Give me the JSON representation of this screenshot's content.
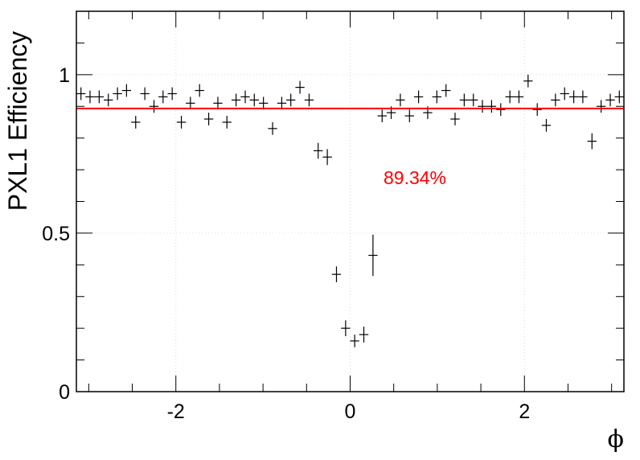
{
  "chart_data": {
    "type": "scatter",
    "title": "",
    "xlabel": "ϕ",
    "ylabel": "PXL1 Efficiency",
    "xlim": [
      -3.1416,
      3.1416
    ],
    "ylim": [
      0,
      1.2
    ],
    "x_ticks": [
      -2,
      0,
      2
    ],
    "x_tick_labels": [
      "-2",
      "0",
      "2"
    ],
    "y_ticks": [
      0,
      0.5,
      1
    ],
    "y_tick_labels": [
      "0",
      "0.5",
      "1"
    ],
    "grid": true,
    "legend": "none",
    "fit_line": {
      "value": 0.8934,
      "color": "#ff0000"
    },
    "annotation": {
      "text": "89.34%",
      "color": "#ff0000"
    },
    "marker_color": "#000000",
    "series": [
      {
        "x_bin_width": 0.1047,
        "x": [
          -3.089,
          -2.985,
          -2.88,
          -2.775,
          -2.67,
          -2.566,
          -2.461,
          -2.356,
          -2.251,
          -2.147,
          -2.042,
          -1.937,
          -1.833,
          -1.728,
          -1.623,
          -1.518,
          -1.414,
          -1.309,
          -1.204,
          -1.1,
          -0.995,
          -0.89,
          -0.785,
          -0.681,
          -0.576,
          -0.471,
          -0.367,
          -0.262,
          -0.157,
          -0.052,
          0.052,
          0.157,
          0.262,
          0.367,
          0.471,
          0.576,
          0.681,
          0.785,
          0.89,
          0.995,
          1.1,
          1.204,
          1.309,
          1.414,
          1.518,
          1.623,
          1.728,
          1.833,
          1.937,
          2.042,
          2.147,
          2.251,
          2.356,
          2.461,
          2.566,
          2.67,
          2.775,
          2.88,
          2.985,
          3.089
        ],
        "y": [
          0.94,
          0.93,
          0.93,
          0.92,
          0.94,
          0.95,
          0.85,
          0.94,
          0.9,
          0.93,
          0.94,
          0.85,
          0.91,
          0.95,
          0.86,
          0.91,
          0.85,
          0.92,
          0.93,
          0.92,
          0.91,
          0.83,
          0.91,
          0.92,
          0.96,
          0.92,
          0.76,
          0.74,
          0.37,
          0.2,
          0.16,
          0.18,
          0.43,
          0.87,
          0.88,
          0.92,
          0.87,
          0.93,
          0.88,
          0.93,
          0.95,
          0.86,
          0.92,
          0.92,
          0.9,
          0.9,
          0.89,
          0.93,
          0.93,
          0.98,
          0.89,
          0.84,
          0.92,
          0.94,
          0.93,
          0.93,
          0.79,
          0.9,
          0.92,
          0.93
        ],
        "y_err": [
          0.012,
          0.012,
          0.012,
          0.012,
          0.012,
          0.012,
          0.015,
          0.012,
          0.015,
          0.012,
          0.012,
          0.015,
          0.015,
          0.012,
          0.018,
          0.015,
          0.015,
          0.012,
          0.012,
          0.012,
          0.012,
          0.018,
          0.015,
          0.012,
          0.012,
          0.012,
          0.025,
          0.025,
          0.025,
          0.025,
          0.02,
          0.025,
          0.065,
          0.02,
          0.02,
          0.015,
          0.02,
          0.015,
          0.02,
          0.015,
          0.012,
          0.018,
          0.015,
          0.012,
          0.015,
          0.015,
          0.015,
          0.012,
          0.012,
          0.01,
          0.02,
          0.02,
          0.015,
          0.012,
          0.012,
          0.012,
          0.025,
          0.02,
          0.015,
          0.015
        ]
      }
    ]
  }
}
